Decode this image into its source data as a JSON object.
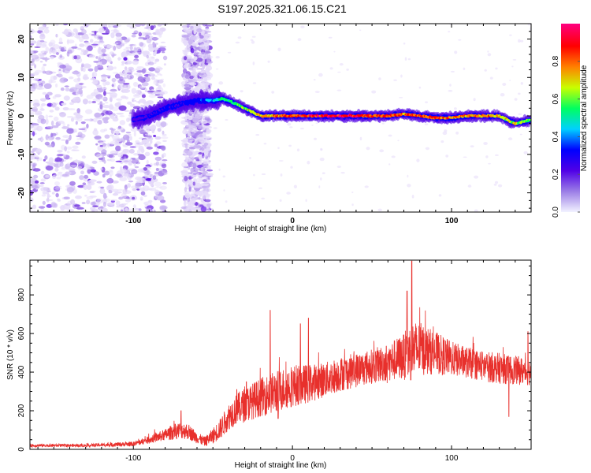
{
  "title": "S197.2025.321.06.15.C21",
  "chart_data": [
    {
      "type": "heatmap",
      "name": "spectrogram",
      "xlabel": "Height of straight line (km)",
      "ylabel": "Frequency (Hz)",
      "xlim": [
        -165,
        150
      ],
      "ylim": [
        -25,
        24
      ],
      "x_ticks": [
        -100,
        0,
        100
      ],
      "x_tick_labels": [
        "-100",
        "0",
        "100"
      ],
      "y_ticks": [
        20,
        10,
        0,
        -10,
        -20
      ],
      "y_tick_labels": [
        "20",
        "10",
        "0",
        "-10",
        "-20"
      ],
      "colorbar": {
        "label": "Normalized spectral amplitude",
        "range": [
          0,
          1
        ],
        "ticks": [
          0.0,
          0.2,
          0.4,
          0.6,
          0.8
        ],
        "tick_labels": [
          "0.0",
          "0.2",
          "0.4",
          "0.6",
          "0.8"
        ],
        "colors": [
          "#f2f2ff",
          "#9b7de6",
          "#5000e6",
          "#0000ff",
          "#00d0ff",
          "#00ff60",
          "#c8ff00",
          "#ff8000",
          "#ff0000",
          "#ff0080"
        ]
      },
      "ridge": {
        "x": [
          -100,
          -90,
          -80,
          -70,
          -60,
          -50,
          -45,
          -40,
          -35,
          -30,
          -25,
          -20,
          -10,
          0,
          10,
          20,
          30,
          40,
          50,
          60,
          70,
          80,
          90,
          100,
          110,
          120,
          130,
          135,
          140,
          145,
          150
        ],
        "freq": [
          -1,
          0,
          2,
          3,
          4,
          4,
          4.5,
          4,
          3,
          2,
          1,
          0,
          0,
          0,
          0,
          0,
          0,
          0,
          0,
          0,
          0.5,
          0,
          -0.5,
          -0.5,
          0,
          0,
          0,
          -1,
          -2,
          -1.5,
          -1
        ],
        "amplitude": [
          0.25,
          0.28,
          0.3,
          0.3,
          0.35,
          0.45,
          0.55,
          0.55,
          0.6,
          0.65,
          0.7,
          0.75,
          0.8,
          0.85,
          0.9,
          0.95,
          0.95,
          0.9,
          0.85,
          0.85,
          0.8,
          0.85,
          0.85,
          0.8,
          0.8,
          0.8,
          0.75,
          0.7,
          0.7,
          0.65,
          0.6
        ]
      },
      "noise_regions": [
        {
          "x_range": [
            -165,
            -100
          ],
          "density": "high"
        },
        {
          "x_range": [
            -100,
            -80
          ],
          "density": "medium"
        },
        {
          "x_range": [
            -68,
            -52
          ],
          "density": "high"
        }
      ]
    },
    {
      "type": "line",
      "name": "snr",
      "xlabel": "Height of straight line (km)",
      "ylabel": "SNR (10 * v/v)",
      "xlim": [
        -165,
        150
      ],
      "ylim": [
        0,
        980
      ],
      "x_ticks": [
        -100,
        0,
        100
      ],
      "x_tick_labels": [
        "-100",
        "0",
        "100"
      ],
      "y_ticks": [
        0,
        200,
        400,
        600,
        800
      ],
      "y_tick_labels": [
        "0",
        "200",
        "400",
        "600",
        "800"
      ],
      "color": "#e8302c",
      "envelope": {
        "x": [
          -165,
          -130,
          -100,
          -90,
          -80,
          -75,
          -70,
          -65,
          -60,
          -55,
          -50,
          -45,
          -40,
          -35,
          -30,
          -20,
          -10,
          0,
          10,
          20,
          30,
          40,
          50,
          60,
          70,
          75,
          80,
          90,
          100,
          110,
          120,
          130,
          140,
          150
        ],
        "mean": [
          20,
          20,
          28,
          50,
          75,
          90,
          100,
          90,
          60,
          40,
          70,
          110,
          170,
          210,
          230,
          270,
          300,
          330,
          340,
          360,
          390,
          410,
          430,
          450,
          480,
          510,
          520,
          500,
          470,
          450,
          430,
          420,
          410,
          400
        ],
        "spread": [
          8,
          8,
          12,
          20,
          30,
          40,
          45,
          40,
          30,
          25,
          40,
          55,
          70,
          80,
          90,
          100,
          110,
          110,
          100,
          90,
          90,
          90,
          90,
          100,
          120,
          160,
          140,
          110,
          90,
          80,
          80,
          80,
          75,
          70
        ]
      },
      "spikes": [
        {
          "x": -70,
          "y": 200
        },
        {
          "x": -35,
          "y": 310
        },
        {
          "x": -29,
          "y": 350
        },
        {
          "x": -14,
          "y": 720
        },
        {
          "x": -9,
          "y": 160
        },
        {
          "x": 5,
          "y": 650
        },
        {
          "x": 10,
          "y": 680
        },
        {
          "x": 75,
          "y": 975
        },
        {
          "x": 72,
          "y": 820
        },
        {
          "x": 136,
          "y": 170
        },
        {
          "x": 148,
          "y": 610
        }
      ]
    }
  ]
}
